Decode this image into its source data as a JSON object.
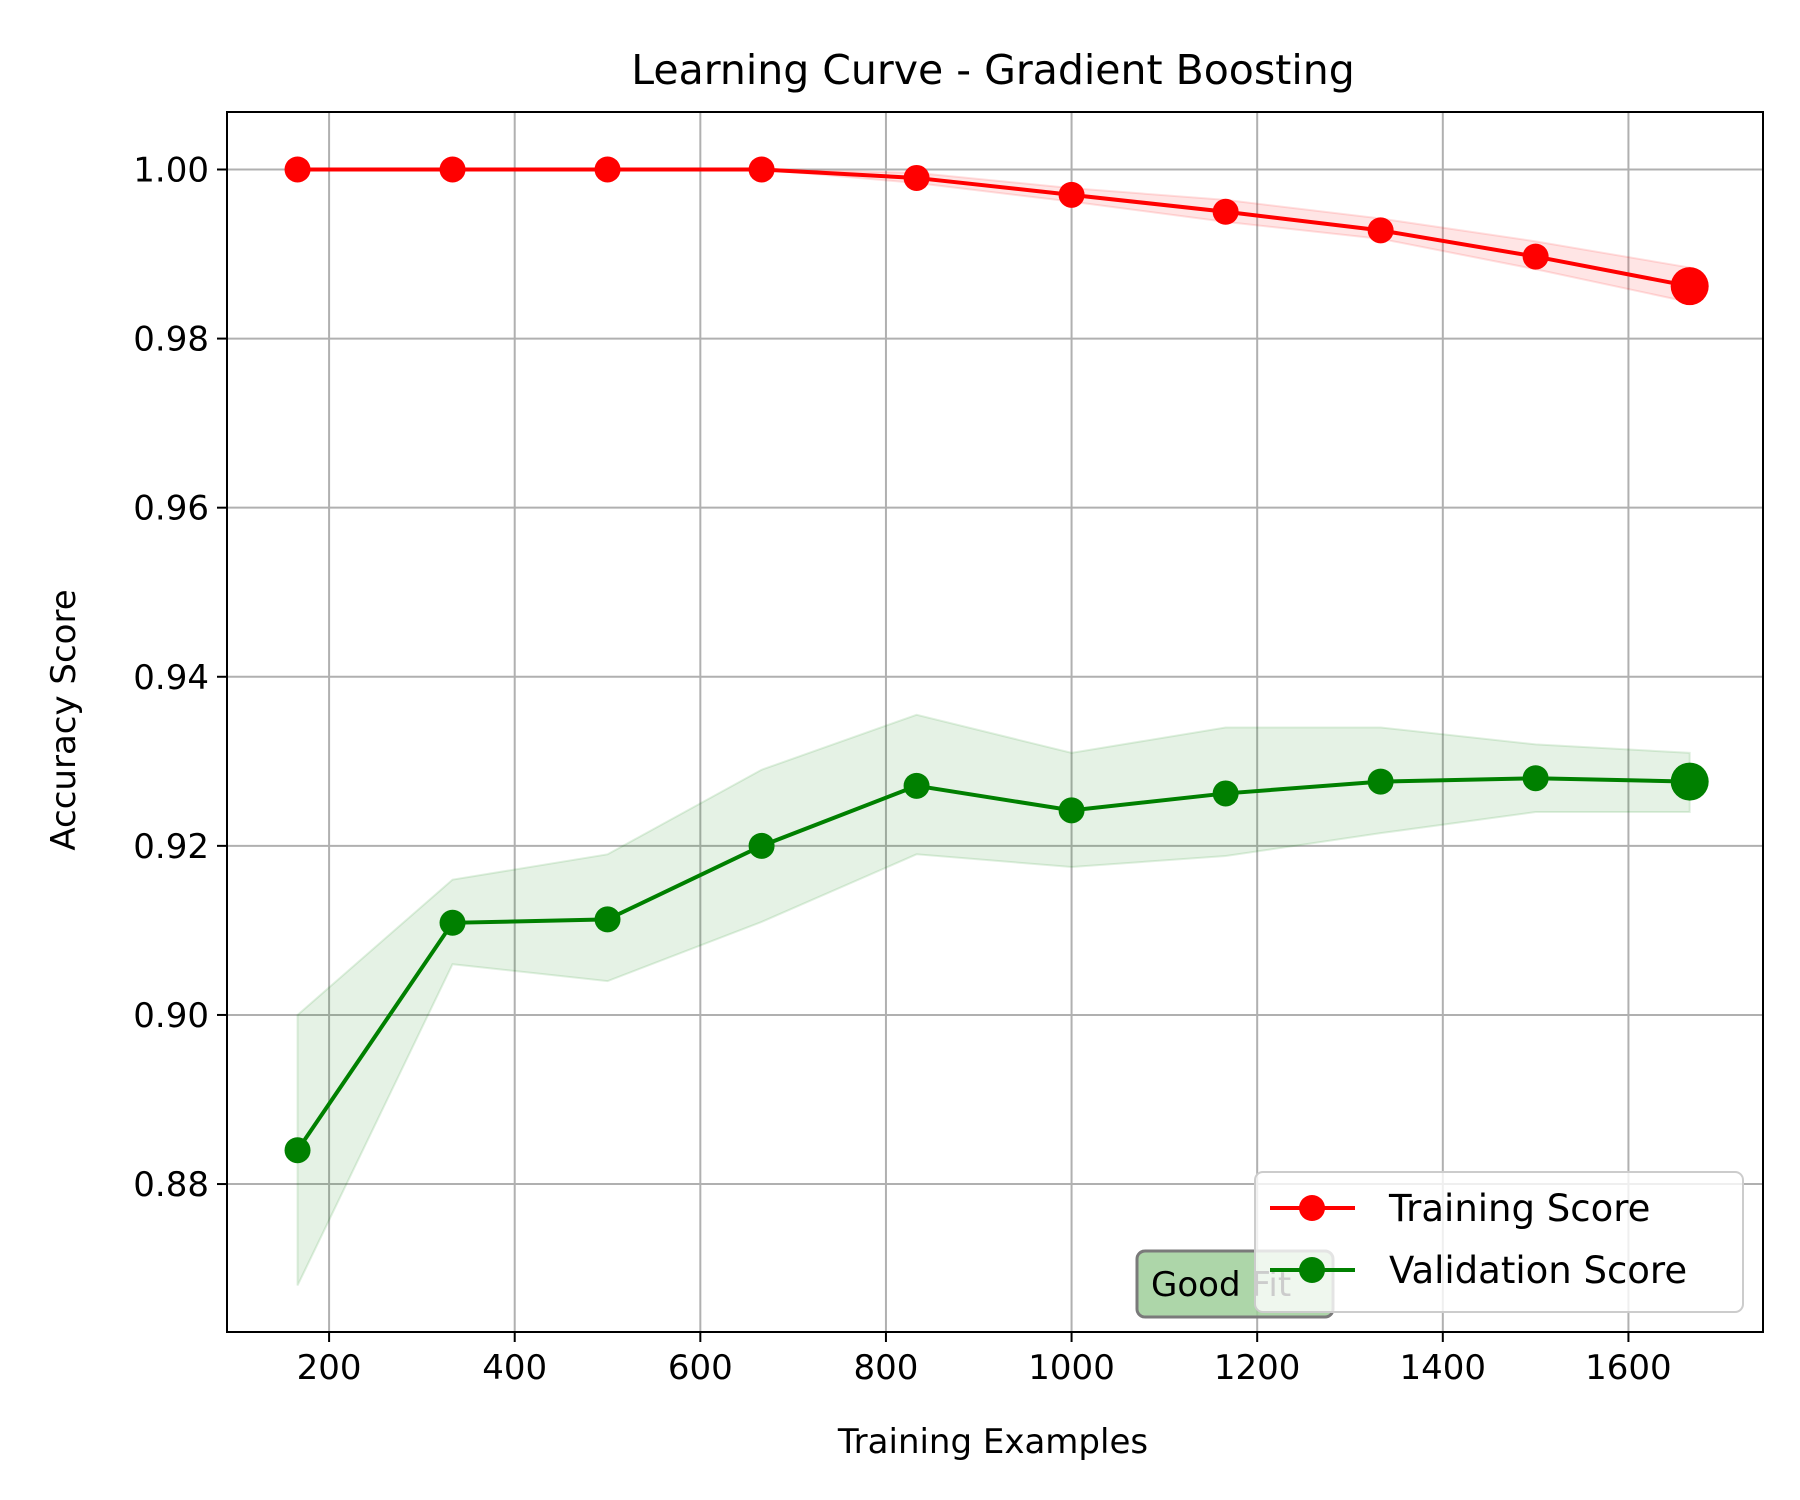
{
  "chart_data": {
    "type": "line",
    "title": "Learning Curve - Gradient Boosting",
    "xlabel": "Training Examples",
    "ylabel": "Accuracy Score",
    "xlim": [
      90,
      1745
    ],
    "ylim": [
      0.8625,
      1.0068
    ],
    "xticks": [
      200,
      400,
      600,
      800,
      1000,
      1200,
      1400,
      1600
    ],
    "xtick_labels": [
      "200",
      "400",
      "600",
      "800",
      "1000",
      "1200",
      "1400",
      "1600"
    ],
    "yticks": [
      0.88,
      0.9,
      0.92,
      0.94,
      0.96,
      0.98,
      1.0
    ],
    "ytick_labels": [
      "0.88",
      "0.90",
      "0.92",
      "0.94",
      "0.96",
      "0.98",
      "1.00"
    ],
    "grid": true,
    "legend_position": "lower-right",
    "annotation": "Good Fit",
    "annotation_color": "#9fcf9a",
    "x": [
      166,
      333,
      500,
      666,
      833,
      1000,
      1166,
      1333,
      1500,
      1666
    ],
    "series": [
      {
        "name": "Training Score",
        "color": "#ff0000",
        "values": [
          1.0,
          1.0,
          1.0,
          1.0,
          0.999,
          0.997,
          0.995,
          0.9928,
          0.9897,
          0.9862
        ],
        "band_lower": [
          1.0,
          1.0,
          1.0,
          1.0,
          0.9984,
          0.9962,
          0.9938,
          0.9918,
          0.9882,
          0.9843
        ],
        "band_upper": [
          1.0,
          1.0,
          1.0,
          1.0,
          0.9996,
          0.9978,
          0.9964,
          0.9942,
          0.9915,
          0.9884
        ]
      },
      {
        "name": "Validation Score",
        "color": "#008000",
        "values": [
          0.884,
          0.9109,
          0.9113,
          0.92,
          0.9271,
          0.9242,
          0.9262,
          0.9276,
          0.928,
          0.9276
        ],
        "band_lower": [
          0.868,
          0.906,
          0.904,
          0.911,
          0.919,
          0.9175,
          0.9188,
          0.9215,
          0.924,
          0.924
        ],
        "band_upper": [
          0.9,
          0.916,
          0.919,
          0.929,
          0.9355,
          0.931,
          0.934,
          0.934,
          0.932,
          0.931
        ]
      }
    ]
  }
}
